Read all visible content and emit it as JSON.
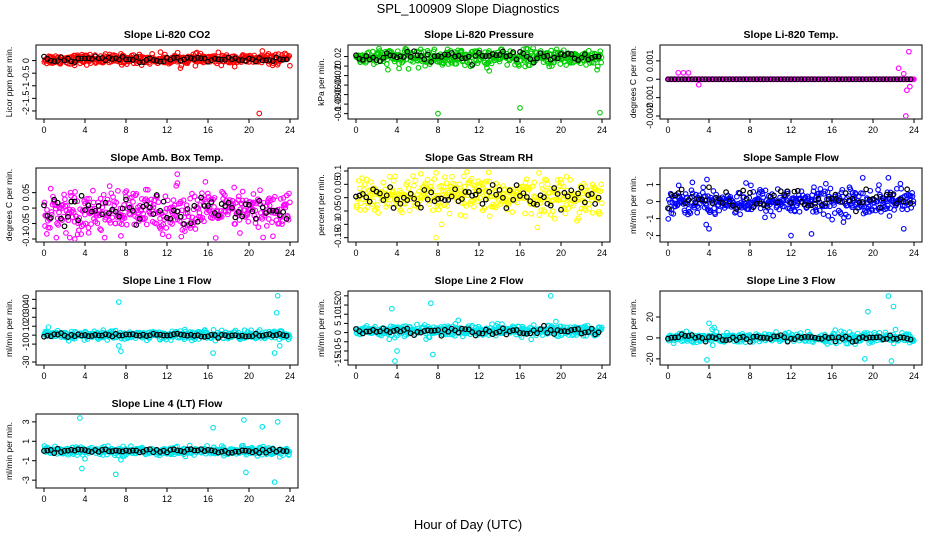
{
  "title": "SPL_100909  Slope Diagnostics",
  "xlabel": "Hour of Day (UTC)",
  "chart_data": [
    {
      "type": "scatter",
      "title": "Slope Li-820 CO2",
      "ylabel": "Licor ppm per min.",
      "x_ticks": [
        0,
        4,
        8,
        12,
        16,
        20,
        24
      ],
      "y_ticks": [
        -2,
        -1.5,
        -1,
        -0.5,
        0
      ],
      "ylim": [
        -2.2,
        0.5
      ],
      "color": "#ff0000",
      "main": {
        "center": 0.05,
        "spread": 0.1
      },
      "black": {
        "center": 0.05,
        "spread": 0.06
      },
      "outliers": [
        [
          21,
          -2.1
        ],
        [
          21.3,
          0.38
        ]
      ]
    },
    {
      "type": "scatter",
      "title": "Slope Li-820 Pressure",
      "ylabel": "kPa per min.",
      "x_ticks": [
        0,
        4,
        8,
        12,
        16,
        20,
        24
      ],
      "y_ticks": [
        -0.1,
        -0.08,
        -0.06,
        -0.04,
        -0.02,
        0,
        0.02
      ],
      "ylim": [
        -0.105,
        0.038
      ],
      "color": "#00cc00",
      "main": {
        "center": 0.018,
        "spread": 0.009
      },
      "black": {
        "center": 0.02,
        "spread": 0.006
      },
      "outliers": [
        [
          8,
          -0.1
        ],
        [
          16,
          -0.088
        ],
        [
          23.8,
          -0.098
        ],
        [
          4.2,
          -0.005
        ],
        [
          13,
          -0.01
        ]
      ]
    },
    {
      "type": "scatter",
      "title": "Slope Li-820 Temp.",
      "ylabel": "degrees C per min.",
      "x_ticks": [
        0,
        4,
        8,
        12,
        16,
        20,
        24
      ],
      "y_ticks": [
        -0.002,
        -0.001,
        0,
        0.001
      ],
      "ylim": [
        -0.002,
        0.0017
      ],
      "color": "#ff00ff",
      "main": {
        "center": 0,
        "spread": 0
      },
      "black": {
        "center": 0,
        "spread": 0
      },
      "outliers": [
        [
          1,
          0.00035
        ],
        [
          1.5,
          0.00035
        ],
        [
          2,
          0.00035
        ],
        [
          3,
          -0.0003
        ],
        [
          22.5,
          0.0006
        ],
        [
          23,
          0.0003
        ],
        [
          23.3,
          -0.0006
        ],
        [
          23.5,
          0.0015
        ],
        [
          23.2,
          -0.002
        ],
        [
          23.6,
          -0.0004
        ]
      ]
    },
    {
      "type": "scatter",
      "title": "Slope Amb. Box Temp.",
      "ylabel": "degrees C per min.",
      "x_ticks": [
        0,
        4,
        8,
        12,
        16,
        20,
        24
      ],
      "y_ticks": [
        -0.1,
        -0.05,
        0,
        0.05
      ],
      "ylim": [
        -0.1,
        0.12
      ],
      "color": "#ff00ff",
      "main": {
        "center": -0.01,
        "spread": 0.035
      },
      "black": {
        "center": -0.01,
        "spread": 0.02
      },
      "outliers": [
        [
          13,
          0.11
        ],
        [
          3,
          -0.1
        ],
        [
          7.5,
          -0.09
        ]
      ]
    },
    {
      "type": "scatter",
      "title": "Slope Gas Stream RH",
      "ylabel": "percent per min.",
      "x_ticks": [
        0,
        4,
        8,
        12,
        16,
        20,
        24
      ],
      "y_ticks": [
        -0.15,
        -0.1,
        -0.05,
        0,
        0.05,
        0.1
      ],
      "ylim": [
        -0.155,
        0.1
      ],
      "color": "#ffff00",
      "main": {
        "center": 0.005,
        "spread": 0.035
      },
      "black": {
        "center": 0.005,
        "spread": 0.025
      },
      "outliers": [
        [
          7.8,
          -0.15
        ],
        [
          3.8,
          0.08
        ],
        [
          10.5,
          0.08
        ]
      ]
    },
    {
      "type": "scatter",
      "title": "Slope Sample Flow",
      "ylabel": "ml/min per min.",
      "x_ticks": [
        0,
        4,
        8,
        12,
        16,
        20,
        24
      ],
      "y_ticks": [
        -2,
        -1,
        0,
        1
      ],
      "ylim": [
        -2.2,
        1.8
      ],
      "color": "#0000ff",
      "main": {
        "center": 0,
        "spread": 0.4
      },
      "black": {
        "center": 0.1,
        "spread": 0.3
      },
      "outliers": [
        [
          3.8,
          1.3
        ],
        [
          4,
          -1.6
        ],
        [
          12,
          -2.0
        ],
        [
          14,
          -1.9
        ],
        [
          19,
          1.4
        ],
        [
          21.5,
          1.4
        ],
        [
          23,
          -1.6
        ]
      ]
    },
    {
      "type": "scatter",
      "title": "Slope Line 1 Flow",
      "ylabel": "ml/min per min.",
      "x_ticks": [
        0,
        4,
        8,
        12,
        16,
        20,
        24
      ],
      "y_ticks": [
        -30,
        -10,
        0,
        10,
        20,
        30,
        40
      ],
      "ylim": [
        -30,
        46
      ],
      "color": "#00e5ee",
      "main": {
        "center": 0,
        "spread": 2.5
      },
      "black": {
        "center": 0,
        "spread": 1
      },
      "outliers": [
        [
          7.3,
          37
        ],
        [
          7.3,
          -12
        ],
        [
          7.5,
          -18
        ],
        [
          16.5,
          -20
        ],
        [
          22.8,
          44
        ],
        [
          22.7,
          25
        ],
        [
          22.5,
          -20
        ],
        [
          23,
          -12
        ]
      ]
    },
    {
      "type": "scatter",
      "title": "Slope Line 2 Flow",
      "ylabel": "ml/min per min.",
      "x_ticks": [
        0,
        4,
        8,
        12,
        16,
        20,
        24
      ],
      "y_ticks": [
        -15,
        -10,
        -5,
        0,
        5,
        10,
        15,
        20
      ],
      "ylim": [
        -16,
        21
      ],
      "color": "#00e5ee",
      "main": {
        "center": 1,
        "spread": 1.5
      },
      "black": {
        "center": 1,
        "spread": 1
      },
      "outliers": [
        [
          3.8,
          -15.5
        ],
        [
          3.5,
          13
        ],
        [
          7.3,
          16
        ],
        [
          7.5,
          -12
        ],
        [
          19,
          20
        ],
        [
          19.5,
          6
        ],
        [
          4,
          -10
        ]
      ]
    },
    {
      "type": "scatter",
      "title": "Slope Line 3 Flow",
      "ylabel": "ml/min per min.",
      "x_ticks": [
        0,
        4,
        8,
        12,
        16,
        20,
        24
      ],
      "y_ticks": [
        -20,
        0,
        20
      ],
      "ylim": [
        -23,
        42
      ],
      "color": "#00e5ee",
      "main": {
        "center": 0,
        "spread": 2.5
      },
      "black": {
        "center": 0,
        "spread": 1.5
      },
      "outliers": [
        [
          3.8,
          -21
        ],
        [
          4,
          14
        ],
        [
          4.5,
          10
        ],
        [
          19.5,
          25
        ],
        [
          21.5,
          40
        ],
        [
          22,
          30
        ],
        [
          19.2,
          -20
        ],
        [
          21.8,
          -22
        ],
        [
          22.2,
          8
        ]
      ]
    },
    {
      "type": "scatter",
      "title": "Slope Line 4 (LT) Flow",
      "ylabel": "ml/min per min.",
      "x_ticks": [
        0,
        4,
        8,
        12,
        16,
        20,
        24
      ],
      "y_ticks": [
        -3,
        -1,
        1,
        3
      ],
      "ylim": [
        -3.5,
        3.5
      ],
      "color": "#00e5ee",
      "main": {
        "center": 0,
        "spread": 0.2
      },
      "black": {
        "center": 0,
        "spread": 0.1
      },
      "outliers": [
        [
          3.5,
          3.4
        ],
        [
          3.7,
          -1.8
        ],
        [
          4,
          -0.8
        ],
        [
          7,
          -2.4
        ],
        [
          7.5,
          -0.9
        ],
        [
          16.5,
          2.4
        ],
        [
          19.5,
          3.2
        ],
        [
          19.7,
          -2.2
        ],
        [
          22.5,
          -3.2
        ],
        [
          22.8,
          3.0
        ],
        [
          23,
          -0.6
        ],
        [
          21.3,
          2.5
        ]
      ]
    }
  ]
}
